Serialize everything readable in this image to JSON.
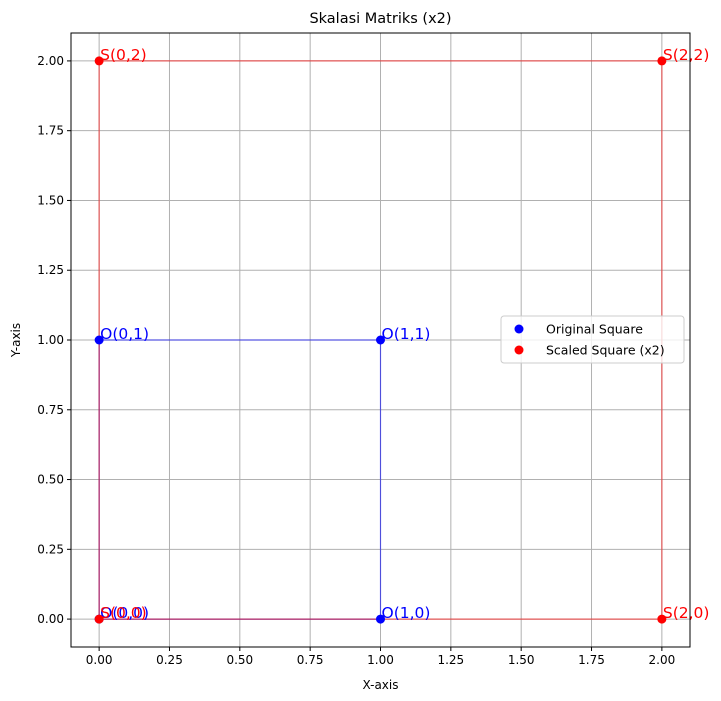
{
  "chart_data": {
    "type": "scatter",
    "title": "Skalasi Matriks (x2)",
    "xlabel": "X-axis",
    "ylabel": "Y-axis",
    "xlim": [
      -0.1,
      2.1
    ],
    "ylim": [
      -0.1,
      2.1
    ],
    "xticks": [
      0.0,
      0.25,
      0.5,
      0.75,
      1.0,
      1.25,
      1.5,
      1.75,
      2.0
    ],
    "xtick_labels": [
      "0.00",
      "0.25",
      "0.50",
      "0.75",
      "1.00",
      "1.25",
      "1.50",
      "1.75",
      "2.00"
    ],
    "yticks": [
      0.0,
      0.25,
      0.5,
      0.75,
      1.0,
      1.25,
      1.5,
      1.75,
      2.0
    ],
    "ytick_labels": [
      "0.00",
      "0.25",
      "0.50",
      "0.75",
      "1.00",
      "1.25",
      "1.50",
      "1.75",
      "2.00"
    ],
    "grid": true,
    "legend_position": "center-right",
    "series": [
      {
        "name": "Original Square",
        "color": "#0000ff",
        "points": [
          {
            "x": 0,
            "y": 0,
            "label": "O(0,0)"
          },
          {
            "x": 1,
            "y": 0,
            "label": "O(1,0)"
          },
          {
            "x": 1,
            "y": 1,
            "label": "O(1,1)"
          },
          {
            "x": 0,
            "y": 1,
            "label": "O(0,1)"
          }
        ]
      },
      {
        "name": "Scaled Square (x2)",
        "color": "#ff0000",
        "points": [
          {
            "x": 0,
            "y": 0,
            "label": "S(0,0)"
          },
          {
            "x": 2,
            "y": 0,
            "label": "S(2,0)"
          },
          {
            "x": 2,
            "y": 2,
            "label": "S(2,2)"
          },
          {
            "x": 0,
            "y": 2,
            "label": "S(0,2)"
          }
        ]
      }
    ]
  }
}
